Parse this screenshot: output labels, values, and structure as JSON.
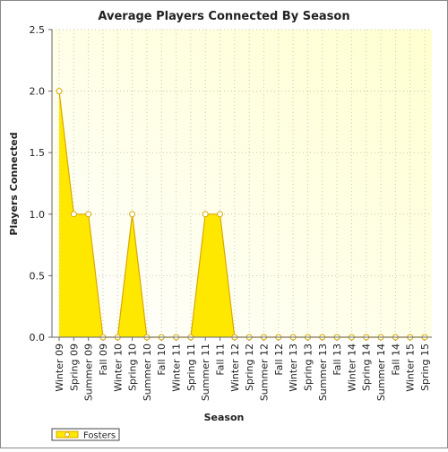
{
  "chart_data": {
    "type": "area",
    "title": "Average Players Connected By Season",
    "x_label": "Season",
    "y_label": "Players Connected",
    "categories": [
      "Winter 09",
      "Spring 09",
      "Summer 09",
      "Fall 09",
      "Winter 10",
      "Spring 10",
      "Summer 10",
      "Fall 10",
      "Winter 11",
      "Spring 11",
      "Summer 11",
      "Fall 11",
      "Winter 12",
      "Spring 12",
      "Summer 12",
      "Fall 12",
      "Winter 13",
      "Spring 13",
      "Summer 13",
      "Fall 13",
      "Winter 14",
      "Spring 14",
      "Summer 14",
      "Fall 14",
      "Winter 15",
      "Spring 15"
    ],
    "series": [
      {
        "name": "Fosters",
        "color": "#ffe800",
        "values": [
          2,
          1,
          1,
          0,
          0,
          1,
          0,
          0,
          0,
          0,
          1,
          1,
          0,
          0,
          0,
          0,
          0,
          0,
          0,
          0,
          0,
          0,
          0,
          0,
          0,
          0
        ]
      }
    ],
    "ylim": [
      0,
      2.5
    ],
    "yticks": [
      {
        "value": 0,
        "label": "0.0"
      },
      0.5,
      {
        "value": 1,
        "label": "1.0"
      },
      1.5,
      {
        "value": 2,
        "label": "2.0"
      },
      2.5
    ],
    "grid": true,
    "legend": "bottom-left"
  }
}
